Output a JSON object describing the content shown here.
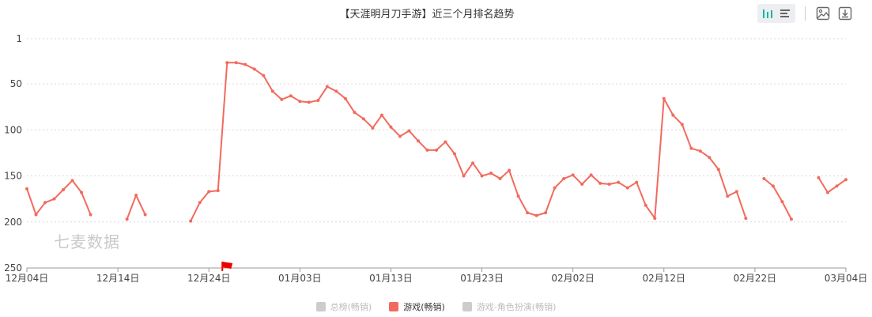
{
  "chart_data": {
    "type": "line",
    "title": "【天涯明月刀手游】近三个月排名趋势",
    "ylim": [
      1,
      250
    ],
    "y_inverted": true,
    "yticks": [
      1,
      50,
      100,
      150,
      200,
      250
    ],
    "xticks": [
      "12月04日",
      "12月14日",
      "12月24日",
      "01月03日",
      "01月13日",
      "01月23日",
      "02月02日",
      "02月12日",
      "02月22日",
      "03月04日"
    ],
    "grid": "horizontal-dashed",
    "legend_position": "bottom",
    "series": [
      {
        "name": "游戏(畅销)",
        "color": "#f26a5e",
        "active": true,
        "values": [
          164,
          192,
          179,
          175,
          165,
          155,
          168,
          192,
          null,
          null,
          null,
          197,
          171,
          192,
          null,
          null,
          null,
          null,
          199,
          179,
          167,
          166,
          27,
          27,
          29,
          34,
          41,
          58,
          67,
          63,
          69,
          70,
          68,
          53,
          58,
          66,
          81,
          88,
          98,
          84,
          97,
          107,
          101,
          112,
          122,
          122,
          113,
          126,
          150,
          136,
          150,
          147,
          153,
          144,
          172,
          190,
          193,
          190,
          163,
          153,
          149,
          159,
          149,
          158,
          159,
          157,
          163,
          157,
          182,
          196,
          66,
          84,
          94,
          120,
          123,
          130,
          143,
          172,
          167,
          196,
          null,
          153,
          161,
          178,
          197,
          null,
          null,
          152,
          168,
          161,
          154
        ]
      }
    ],
    "markers": [
      {
        "type": "flag",
        "x_index": 22,
        "color": "#ee0000"
      }
    ]
  },
  "legend": [
    {
      "label": "总榜(畅销)",
      "color": "#cccccc",
      "active": false
    },
    {
      "label": "游戏(畅销)",
      "color": "#f26a5e",
      "active": true
    },
    {
      "label": "游戏-角色扮演(畅销)",
      "color": "#cccccc",
      "active": false
    }
  ],
  "watermark": "七麦数据",
  "toolbar": {
    "icons": [
      "bar-chart-icon",
      "line-list-icon",
      "save-image-icon",
      "download-icon"
    ],
    "accent": "#13b5a5"
  }
}
